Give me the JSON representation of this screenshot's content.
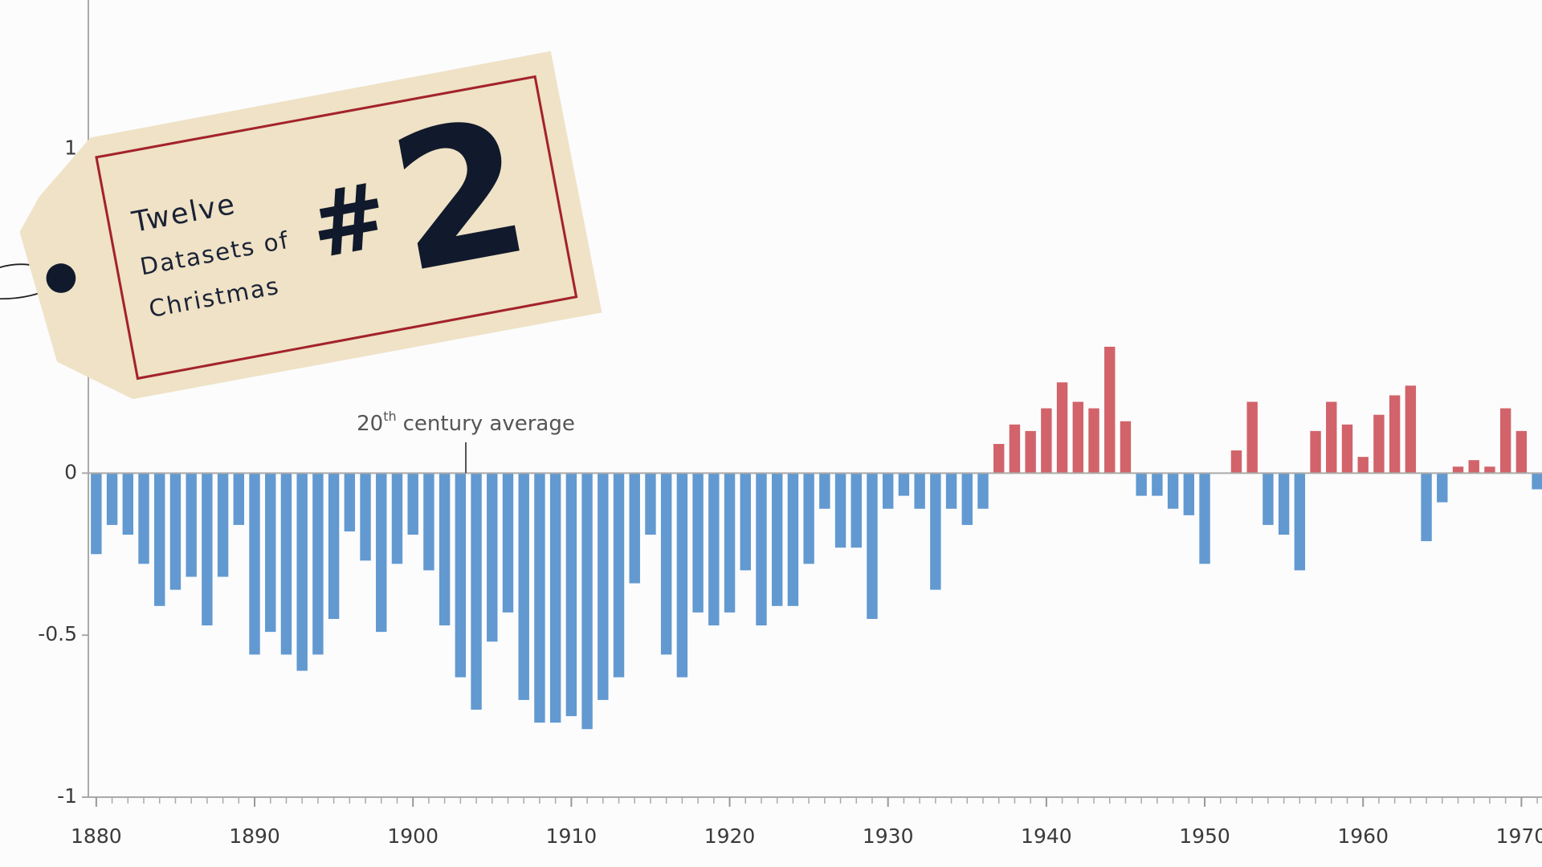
{
  "chart_data": {
    "type": "bar",
    "x": [
      1880,
      1881,
      1882,
      1883,
      1884,
      1885,
      1886,
      1887,
      1888,
      1889,
      1890,
      1891,
      1892,
      1893,
      1894,
      1895,
      1896,
      1897,
      1898,
      1899,
      1900,
      1901,
      1902,
      1903,
      1904,
      1905,
      1906,
      1907,
      1908,
      1909,
      1910,
      1911,
      1912,
      1913,
      1914,
      1915,
      1916,
      1917,
      1918,
      1919,
      1920,
      1921,
      1922,
      1923,
      1924,
      1925,
      1926,
      1927,
      1928,
      1929,
      1930,
      1931,
      1932,
      1933,
      1934,
      1935,
      1936,
      1937,
      1938,
      1939,
      1940,
      1941,
      1942,
      1943,
      1944,
      1945,
      1946,
      1947,
      1948,
      1949,
      1950,
      1951,
      1952,
      1953,
      1954,
      1955,
      1956,
      1957,
      1958,
      1959,
      1960,
      1961,
      1962,
      1963,
      1964,
      1965,
      1966,
      1967,
      1968,
      1969,
      1970,
      1971
    ],
    "values": [
      -0.25,
      -0.16,
      -0.19,
      -0.28,
      -0.41,
      -0.36,
      -0.32,
      -0.47,
      -0.32,
      -0.16,
      -0.56,
      -0.49,
      -0.56,
      -0.61,
      -0.56,
      -0.45,
      -0.18,
      -0.27,
      -0.49,
      -0.28,
      -0.19,
      -0.3,
      -0.47,
      -0.63,
      -0.73,
      -0.52,
      -0.43,
      -0.7,
      -0.77,
      -0.77,
      -0.75,
      -0.79,
      -0.7,
      -0.63,
      -0.34,
      -0.19,
      -0.56,
      -0.63,
      -0.43,
      -0.47,
      -0.43,
      -0.3,
      -0.47,
      -0.41,
      -0.41,
      -0.28,
      -0.11,
      -0.23,
      -0.23,
      -0.45,
      -0.11,
      -0.07,
      -0.11,
      -0.36,
      -0.11,
      -0.16,
      -0.11,
      0.09,
      0.15,
      0.13,
      0.2,
      0.28,
      0.22,
      0.2,
      0.39,
      0.16,
      -0.07,
      -0.07,
      -0.11,
      -0.13,
      -0.28,
      0,
      0.07,
      0.22,
      -0.16,
      -0.19,
      -0.3,
      0.13,
      0.22,
      0.15,
      0.05,
      0.18,
      0.24,
      0.27,
      -0.21,
      -0.09,
      0.02,
      0.04,
      0.02,
      0.2,
      0.13,
      -0.05
    ],
    "colors": {
      "positive": "#d2636a",
      "negative": "#6299d0"
    },
    "xlim": [
      1879.5,
      1971.3
    ],
    "xticks": [
      1880,
      1890,
      1900,
      1910,
      1920,
      1930,
      1940,
      1950,
      1960,
      1970
    ],
    "ylim": [
      -1,
      1.46
    ],
    "yticks": [
      1,
      0,
      -0.5,
      -1
    ],
    "annotation": {
      "number": "20",
      "suffix": "th",
      "text": "century average"
    }
  },
  "tag": {
    "lines": [
      "Twelve",
      "Datasets of",
      "Christmas"
    ],
    "number_sign": "#",
    "number": "2"
  }
}
